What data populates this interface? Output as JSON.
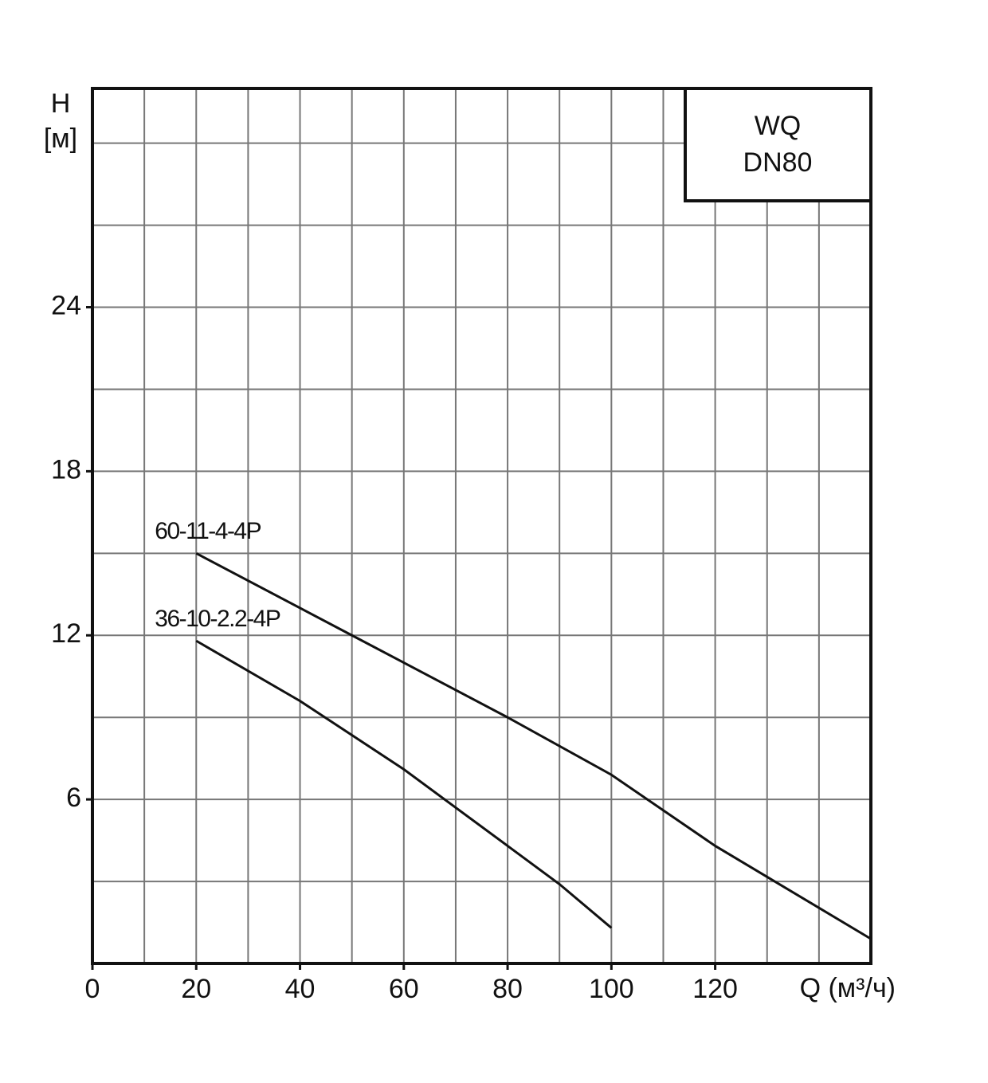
{
  "chart_data": {
    "type": "line",
    "title": [
      "WQ",
      "DN80"
    ],
    "y_label": [
      "H",
      "[м]"
    ],
    "x_label": "Q (м³/ч)",
    "xlim": [
      0,
      150
    ],
    "ylim": [
      0,
      32
    ],
    "xticks": [
      0,
      20,
      40,
      60,
      80,
      100,
      120
    ],
    "minor_xticks": [
      10,
      30,
      50,
      70,
      90,
      110,
      130,
      140
    ],
    "yticks": [
      6,
      12,
      18,
      24
    ],
    "minor_yticks": [
      3,
      9,
      15,
      21,
      27,
      30
    ],
    "grid": true,
    "series": [
      {
        "name": "60-11-4-4P",
        "color": "#111111",
        "x": [
          20,
          50,
          80,
          100,
          120,
          150
        ],
        "values": [
          15,
          12,
          9,
          6.9,
          4.3,
          0.9
        ]
      },
      {
        "name": "36-10-2.2-4P",
        "color": "#111111",
        "x": [
          20,
          40,
          60,
          80,
          90,
          100
        ],
        "values": [
          11.8,
          9.6,
          7.1,
          4.3,
          2.9,
          1.3
        ]
      }
    ]
  }
}
